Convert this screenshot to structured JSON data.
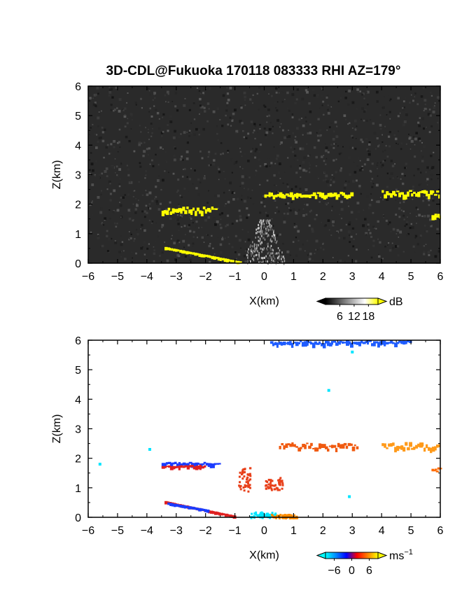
{
  "title": "3D-CDL@Fukuoka 170118 083333 RHI AZ=179°",
  "chart_data": [
    {
      "type": "heatmap",
      "panel": "reflectivity",
      "xlabel": "X(km)",
      "ylabel": "Z(km)",
      "xlim": [
        -6,
        6
      ],
      "ylim": [
        0,
        6
      ],
      "xticks": [
        "-6",
        "-5",
        "-4",
        "-3",
        "-2",
        "-1",
        "0",
        "1",
        "2",
        "3",
        "4",
        "5",
        "6"
      ],
      "yticks": [
        "0",
        "1",
        "2",
        "3",
        "4",
        "5",
        "6"
      ],
      "background_color": "#2a2a2a",
      "colorbar": {
        "unit": "dB",
        "ticks": [
          "6",
          "12",
          "18"
        ],
        "range": [
          0,
          22
        ],
        "colors": [
          "#000000",
          "#555555",
          "#aaaaaa",
          "#ffffff",
          "#ffff00"
        ]
      },
      "features": [
        {
          "kind": "layer",
          "color": "#ffff00",
          "x": [
            -3.5,
            -1.6
          ],
          "z": [
            1.92,
            1.75
          ]
        },
        {
          "kind": "layer",
          "color": "#ffff00",
          "x": [
            0.0,
            1.3
          ],
          "z": [
            2.42,
            2.3
          ]
        },
        {
          "kind": "layer",
          "color": "#ffff00",
          "x": [
            1.3,
            3.0
          ],
          "z": [
            2.42,
            2.3
          ]
        },
        {
          "kind": "layer",
          "color": "#ffff00",
          "x": [
            4.0,
            6.0
          ],
          "z": [
            2.52,
            2.32
          ]
        },
        {
          "kind": "layer",
          "color": "#ffff00",
          "x": [
            5.7,
            6.0
          ],
          "z": [
            1.68,
            1.6
          ]
        },
        {
          "kind": "ground",
          "color": "#ffff00",
          "x": [
            -3.4,
            -0.8
          ],
          "z": [
            0.55,
            0.05
          ]
        },
        {
          "kind": "clutter",
          "color": "#cfcfcf",
          "x": [
            -0.9,
            0.9
          ],
          "z": [
            0.0,
            1.5
          ]
        }
      ]
    },
    {
      "type": "scatter",
      "panel": "doppler-velocity",
      "xlabel": "X(km)",
      "ylabel": "Z(km)",
      "xlim": [
        -6,
        6
      ],
      "ylim": [
        0,
        6
      ],
      "xticks": [
        "-6",
        "-5",
        "-4",
        "-3",
        "-2",
        "-1",
        "0",
        "1",
        "2",
        "3",
        "4",
        "5",
        "6"
      ],
      "yticks": [
        "0",
        "1",
        "2",
        "3",
        "4",
        "5",
        "6"
      ],
      "colorbar": {
        "unit": "ms",
        "unit_exp": "−1",
        "ticks": [
          "−6",
          "0",
          "6"
        ],
        "range": [
          -9,
          9
        ],
        "colors": [
          "#00ffff",
          "#0088ff",
          "#0000ff",
          "#ff0000",
          "#ff8000",
          "#ffff00"
        ]
      },
      "features": [
        {
          "kind": "layer",
          "color": "#1b3cff",
          "x": [
            -3.5,
            -1.5
          ],
          "z": [
            1.88,
            1.82
          ]
        },
        {
          "kind": "layer",
          "color": "#e02020",
          "x": [
            -3.5,
            -2.0
          ],
          "z": [
            1.78,
            1.72
          ]
        },
        {
          "kind": "layer",
          "color": "#f05a10",
          "x": [
            0.5,
            3.2
          ],
          "z": [
            2.55,
            2.32
          ]
        },
        {
          "kind": "layer",
          "color": "#ff9a1a",
          "x": [
            4.0,
            6.0
          ],
          "z": [
            2.56,
            2.35
          ]
        },
        {
          "kind": "layer",
          "color": "#ff6a00",
          "x": [
            5.7,
            6.0
          ],
          "z": [
            1.72,
            1.55
          ]
        },
        {
          "kind": "layer",
          "color": "#1e5cff",
          "x": [
            0.2,
            5.0
          ],
          "z": [
            6.0,
            5.9
          ]
        },
        {
          "kind": "ground",
          "color": "#e02020",
          "x": [
            -3.4,
            -1.0
          ],
          "z": [
            0.55,
            0.05
          ]
        },
        {
          "kind": "ground",
          "color": "#1b3cff",
          "x": [
            -3.3,
            -1.9
          ],
          "z": [
            0.5,
            0.25
          ]
        },
        {
          "kind": "patch",
          "color": "#00e5ff",
          "x": [
            -0.5,
            0.4
          ],
          "z": [
            0.0,
            0.2
          ]
        },
        {
          "kind": "patch",
          "color": "#ff8c00",
          "x": [
            0.2,
            1.1
          ],
          "z": [
            0.0,
            0.12
          ]
        },
        {
          "kind": "column",
          "color": "#e8401a",
          "x": [
            -0.9,
            -0.5
          ],
          "z": [
            0.9,
            1.7
          ]
        },
        {
          "kind": "column",
          "color": "#e8401a",
          "x": [
            0.0,
            0.6
          ],
          "z": [
            0.95,
            1.4
          ]
        },
        {
          "kind": "points",
          "color": "#00e5ff",
          "x": [
            -5.6,
            -3.9,
            2.2,
            2.9,
            3.0
          ],
          "z": [
            1.8,
            2.3,
            4.3,
            0.7,
            5.6
          ]
        }
      ]
    }
  ]
}
